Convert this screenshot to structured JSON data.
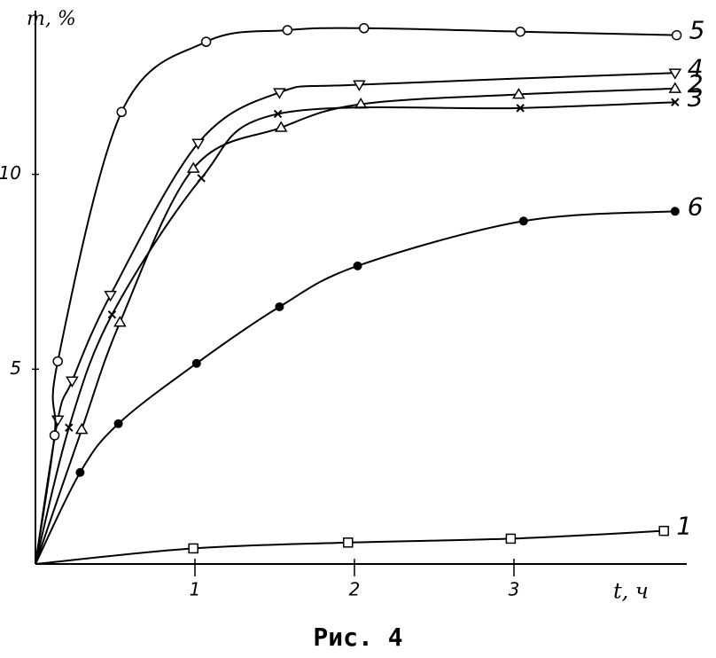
{
  "chart_data": {
    "type": "line",
    "caption": "Рис. 4",
    "y_label": "m, %",
    "x_label": "t, ч",
    "xlim": [
      0,
      4.1
    ],
    "ylim": [
      0,
      14.2
    ],
    "xticks": [
      1,
      2,
      3
    ],
    "yticks": [
      5,
      10
    ],
    "series": [
      {
        "name": "1",
        "color": "#000000",
        "marker": "square-open",
        "x": [
          0,
          0.99,
          1.96,
          2.98,
          3.94
        ],
        "values": [
          0,
          0.4,
          0.55,
          0.65,
          0.85
        ]
      },
      {
        "name": "2",
        "color": "#000000",
        "marker": "triangle-up",
        "x": [
          0,
          0.29,
          0.53,
          0.99,
          1.54,
          2.04,
          3.03,
          4.01
        ],
        "values": [
          0,
          3.45,
          6.2,
          10.15,
          11.2,
          11.8,
          12.05,
          12.2
        ]
      },
      {
        "name": "3",
        "color": "#000000",
        "marker": "cross",
        "x": [
          0,
          0.21,
          0.48,
          1.04,
          1.52,
          3.04,
          4.01
        ],
        "values": [
          0,
          3.5,
          6.4,
          9.9,
          11.55,
          11.7,
          11.85
        ]
      },
      {
        "name": "4",
        "color": "#000000",
        "marker": "triangle-down",
        "x": [
          0,
          0.14,
          0.23,
          0.47,
          1.02,
          1.53,
          2.03,
          4.01
        ],
        "values": [
          0,
          3.7,
          4.7,
          6.9,
          10.8,
          12.1,
          12.3,
          12.6
        ]
      },
      {
        "name": "5",
        "color": "#000000",
        "marker": "circle-open",
        "x": [
          0,
          0.12,
          0.14,
          0.54,
          1.07,
          1.58,
          2.06,
          3.04,
          4.02
        ],
        "values": [
          0,
          3.3,
          5.2,
          11.6,
          13.4,
          13.7,
          13.75,
          13.66,
          13.57
        ]
      },
      {
        "name": "6",
        "color": "#000000",
        "marker": "circle-filled",
        "x": [
          0,
          0.28,
          0.52,
          1.01,
          1.53,
          2.02,
          3.06,
          4.01
        ],
        "values": [
          0,
          2.35,
          3.6,
          5.15,
          6.6,
          7.65,
          8.8,
          9.05
        ]
      }
    ]
  }
}
